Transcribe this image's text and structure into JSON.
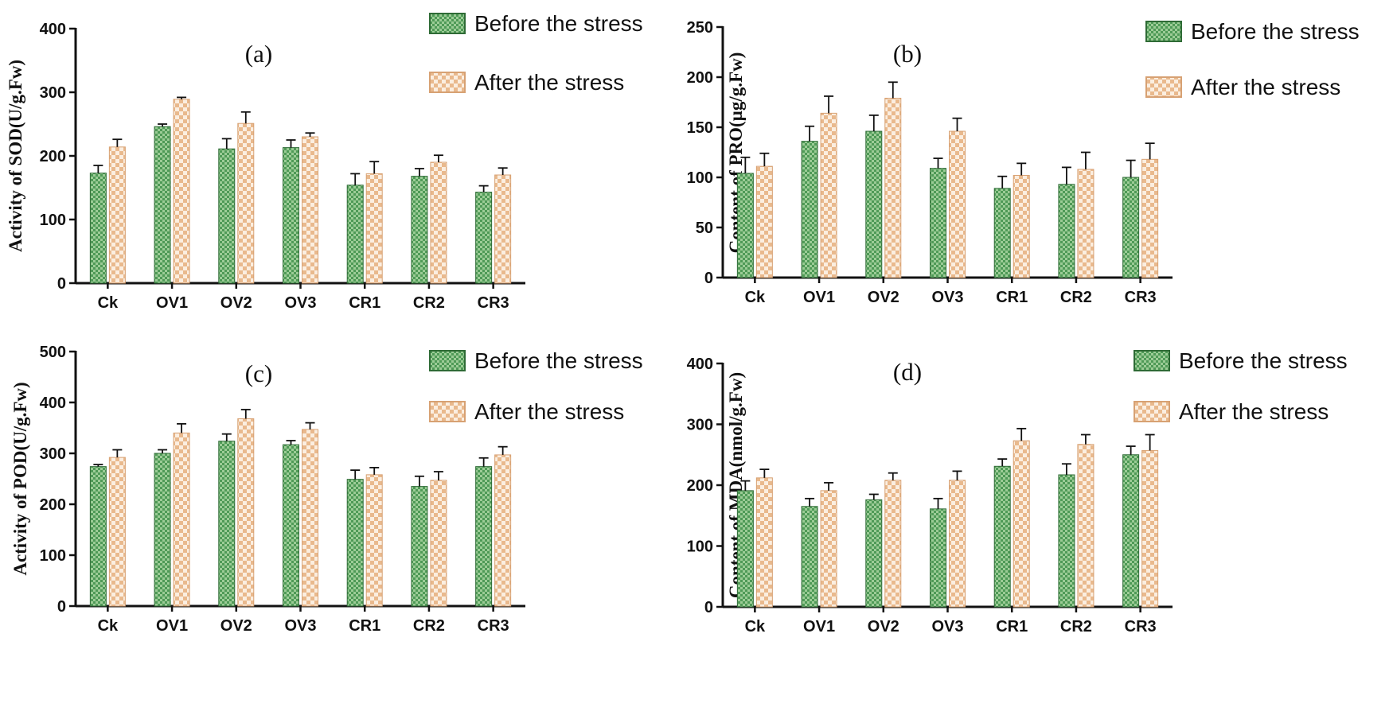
{
  "colors": {
    "before_fill": "#4f9a57",
    "before_light": "#9ccc96",
    "after_fill": "#e9b98d",
    "after_light": "#fbeee0",
    "axis": "#111111"
  },
  "legend": {
    "before": "Before the stress",
    "after": "After the stress"
  },
  "chart_data": [
    {
      "type": "bar",
      "panel": "(a)",
      "ylabel": "Activity of SOD(U/g.Fw)",
      "ylim": [
        0,
        400
      ],
      "yticks": [
        "0",
        "100",
        "200",
        "300",
        "400"
      ],
      "categories": [
        "Ck",
        "OV1",
        "OV2",
        "OV3",
        "CR1",
        "CR2",
        "CR3"
      ],
      "series": [
        {
          "name": "Before the stress",
          "values": [
            173,
            246,
            211,
            213,
            154,
            168,
            143
          ],
          "errors": [
            12,
            4,
            16,
            12,
            18,
            12,
            10
          ]
        },
        {
          "name": "After the stress",
          "values": [
            214,
            289,
            251,
            230,
            172,
            190,
            170
          ],
          "errors": [
            12,
            3,
            18,
            6,
            19,
            11,
            11
          ]
        }
      ]
    },
    {
      "type": "bar",
      "panel": "(b)",
      "ylabel": "Content of PRO(µg/g.Fw)",
      "ylim": [
        0,
        250
      ],
      "yticks": [
        "0",
        "50",
        "100",
        "150",
        "200",
        "250"
      ],
      "categories": [
        "Ck",
        "OV1",
        "OV2",
        "OV3",
        "CR1",
        "CR2",
        "CR3"
      ],
      "series": [
        {
          "name": "Before the stress",
          "values": [
            104,
            136,
            146,
            109,
            89,
            93,
            100
          ],
          "errors": [
            16,
            15,
            16,
            10,
            12,
            17,
            17
          ]
        },
        {
          "name": "After the stress",
          "values": [
            111,
            164,
            179,
            146,
            102,
            108,
            118
          ],
          "errors": [
            13,
            17,
            16,
            13,
            12,
            17,
            16
          ]
        }
      ]
    },
    {
      "type": "bar",
      "panel": "(c)",
      "ylabel": "Activity of POD(U/g.Fw)",
      "ylim": [
        0,
        500
      ],
      "yticks": [
        "0",
        "100",
        "200",
        "300",
        "400",
        "500"
      ],
      "categories": [
        "Ck",
        "OV1",
        "OV2",
        "OV3",
        "CR1",
        "CR2",
        "CR3"
      ],
      "series": [
        {
          "name": "Before the stress",
          "values": [
            274,
            300,
            324,
            317,
            249,
            235,
            274
          ],
          "errors": [
            4,
            7,
            14,
            8,
            18,
            20,
            17
          ]
        },
        {
          "name": "After the stress",
          "values": [
            292,
            340,
            368,
            347,
            258,
            247,
            297
          ],
          "errors": [
            15,
            18,
            18,
            13,
            14,
            17,
            16
          ]
        }
      ]
    },
    {
      "type": "bar",
      "panel": "(d)",
      "ylabel": "Content of MDA(nmol/g.Fw)",
      "ylim": [
        0,
        400
      ],
      "yticks": [
        "0",
        "100",
        "200",
        "300",
        "400"
      ],
      "categories": [
        "Ck",
        "OV1",
        "OV2",
        "OV3",
        "CR1",
        "CR2",
        "CR3"
      ],
      "series": [
        {
          "name": "Before the stress",
          "values": [
            191,
            165,
            176,
            161,
            231,
            217,
            250
          ],
          "errors": [
            16,
            13,
            9,
            17,
            12,
            18,
            14
          ]
        },
        {
          "name": "After the stress",
          "values": [
            212,
            191,
            208,
            208,
            273,
            267,
            257
          ],
          "errors": [
            14,
            13,
            12,
            15,
            20,
            16,
            26
          ]
        }
      ]
    }
  ]
}
